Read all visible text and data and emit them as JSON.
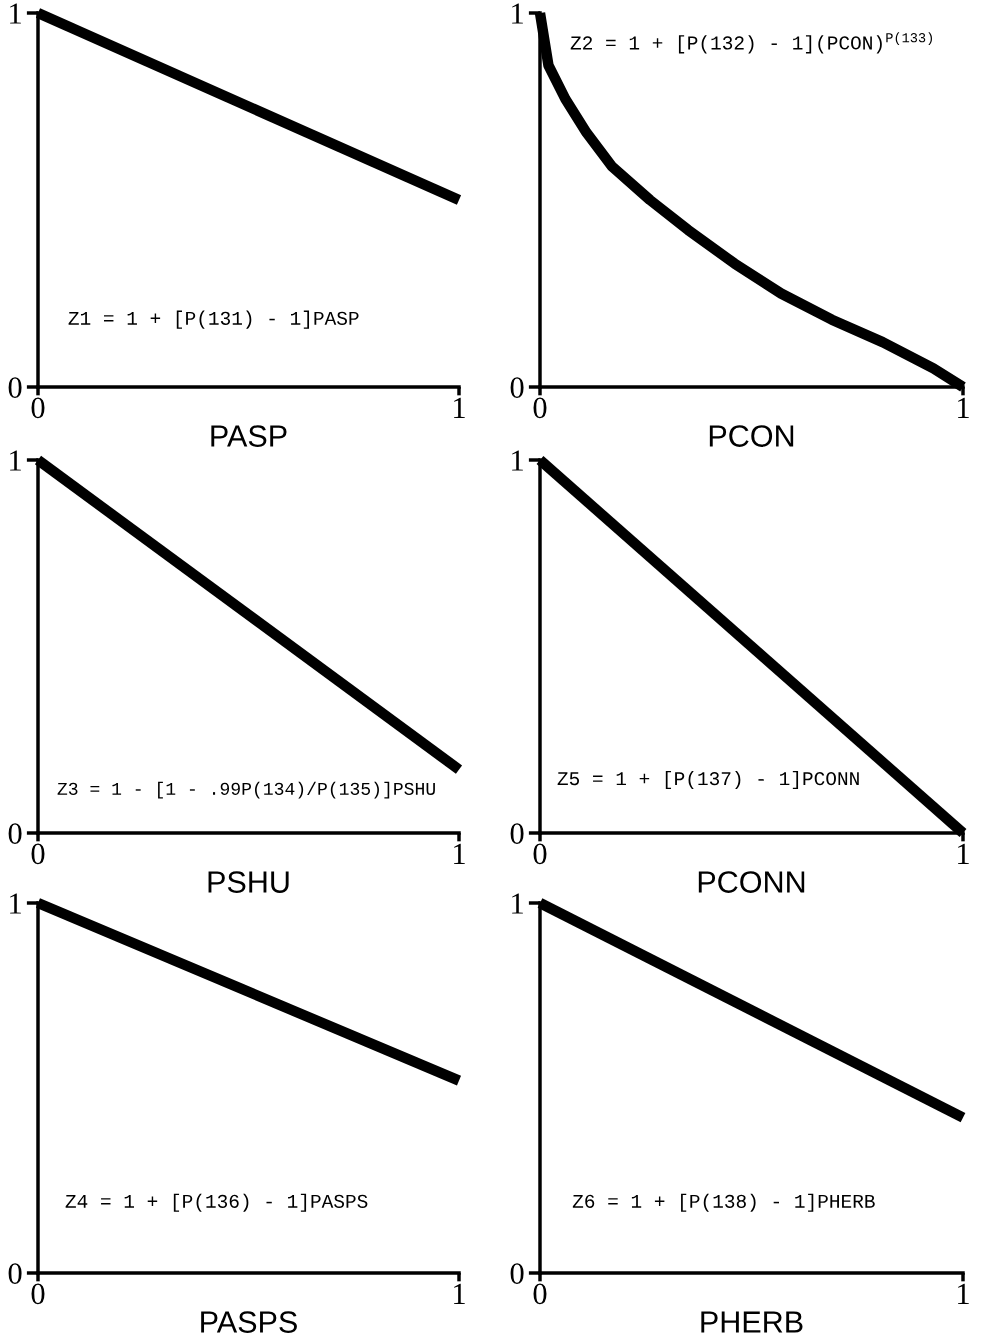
{
  "chart_data": [
    {
      "type": "line",
      "xlabel": "PASP",
      "x": [
        0,
        1
      ],
      "values": [
        1,
        0.5
      ],
      "color": "#000000",
      "xlim": [
        0,
        1
      ],
      "ylim": [
        0,
        1
      ],
      "xticks": [
        0,
        1
      ],
      "yticks": [
        0,
        1
      ],
      "annotations": [
        "Z1 = 1 + [P(131) - 1]PASP"
      ]
    },
    {
      "type": "line",
      "xlabel": "PCON",
      "x": [
        0,
        0.02,
        0.06,
        0.11,
        0.17,
        0.26,
        0.35,
        0.46,
        0.57,
        0.69,
        0.81,
        0.93,
        1
      ],
      "values": [
        1,
        0.86,
        0.77,
        0.68,
        0.59,
        0.5,
        0.42,
        0.33,
        0.25,
        0.18,
        0.12,
        0.05,
        0
      ],
      "color": "#000000",
      "xlim": [
        0,
        1
      ],
      "ylim": [
        0,
        1
      ],
      "xticks": [
        0,
        1
      ],
      "yticks": [
        0,
        1
      ],
      "annotations": [
        "Z2 = 1 + [P(132) - 1](PCON)$^{P(133)}$"
      ]
    },
    {
      "type": "line",
      "xlabel": "PSHU",
      "x": [
        0,
        1
      ],
      "values": [
        1,
        0.17
      ],
      "color": "#000000",
      "xlim": [
        0,
        1
      ],
      "ylim": [
        0,
        1
      ],
      "xticks": [
        0,
        1
      ],
      "yticks": [
        0,
        1
      ],
      "annotations": [
        "Z3 = 1 - [1 - .99P(134)/P(135)]PSHU"
      ]
    },
    {
      "type": "line",
      "xlabel": "PCONN",
      "x": [
        0,
        1
      ],
      "values": [
        1,
        0
      ],
      "color": "#000000",
      "xlim": [
        0,
        1
      ],
      "ylim": [
        0,
        1
      ],
      "xticks": [
        0,
        1
      ],
      "yticks": [
        0,
        1
      ],
      "annotations": [
        "Z5 = 1 + [P(137) - 1]PCONN"
      ]
    },
    {
      "type": "line",
      "xlabel": "PASPS",
      "x": [
        0,
        1
      ],
      "values": [
        1,
        0.52
      ],
      "color": "#000000",
      "xlim": [
        0,
        1
      ],
      "ylim": [
        0,
        1
      ],
      "xticks": [
        0,
        1
      ],
      "yticks": [
        0,
        1
      ],
      "annotations": [
        "Z4 = 1 + [P(136) - 1]PASPS"
      ]
    },
    {
      "type": "line",
      "xlabel": "PHERB",
      "x": [
        0,
        1
      ],
      "values": [
        1,
        0.42
      ],
      "color": "#000000",
      "xlim": [
        0,
        1
      ],
      "ylim": [
        0,
        1
      ],
      "xticks": [
        0,
        1
      ],
      "yticks": [
        0,
        1
      ],
      "annotations": [
        "Z6 = 1 + [P(138) - 1]PHERB"
      ]
    }
  ]
}
